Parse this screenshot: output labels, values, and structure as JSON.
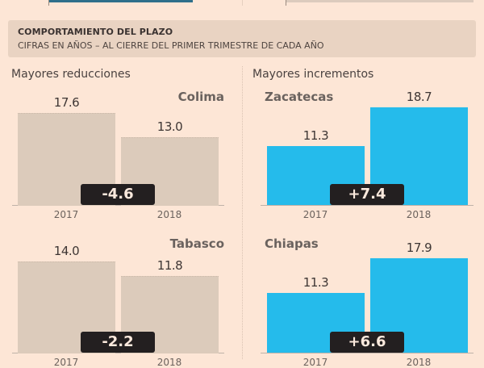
{
  "header": {
    "title": "COMPORTAMIENTO DEL PLAZO",
    "subtitle": "CIFRAS EN AÑOS – AL CIERRE DEL PRIMER TRIMESTRE DE CADA AÑO"
  },
  "sections": {
    "left": "Mayores reducciones",
    "right": "Mayores incrementos"
  },
  "colors": {
    "reduction_bar": "#dccbbb",
    "increment_bar": "#25bbeb",
    "badge": "#231f20",
    "background": "#fde6d6",
    "header_bg": "#e9d3c2",
    "top_bar_left": "#2f6f8a"
  },
  "chart_data": [
    {
      "type": "bar",
      "title": "Colima",
      "group": "Mayores reducciones",
      "categories": [
        "2017",
        "2018"
      ],
      "values": [
        17.6,
        13.0
      ],
      "labels": [
        "17.6",
        "13.0"
      ],
      "change": "-4.6",
      "unit": "años"
    },
    {
      "type": "bar",
      "title": "Zacatecas",
      "group": "Mayores incrementos",
      "categories": [
        "2017",
        "2018"
      ],
      "values": [
        11.3,
        18.7
      ],
      "labels": [
        "11.3",
        "18.7"
      ],
      "change": "+7.4",
      "unit": "años"
    },
    {
      "type": "bar",
      "title": "Tabasco",
      "group": "Mayores reducciones",
      "categories": [
        "2017",
        "2018"
      ],
      "values": [
        14.0,
        11.8
      ],
      "labels": [
        "14.0",
        "11.8"
      ],
      "change": "-2.2",
      "unit": "años"
    },
    {
      "type": "bar",
      "title": "Chiapas",
      "group": "Mayores incrementos",
      "categories": [
        "2017",
        "2018"
      ],
      "values": [
        11.3,
        17.9
      ],
      "labels": [
        "11.3",
        "17.9"
      ],
      "change": "+6.6",
      "unit": "años"
    }
  ]
}
